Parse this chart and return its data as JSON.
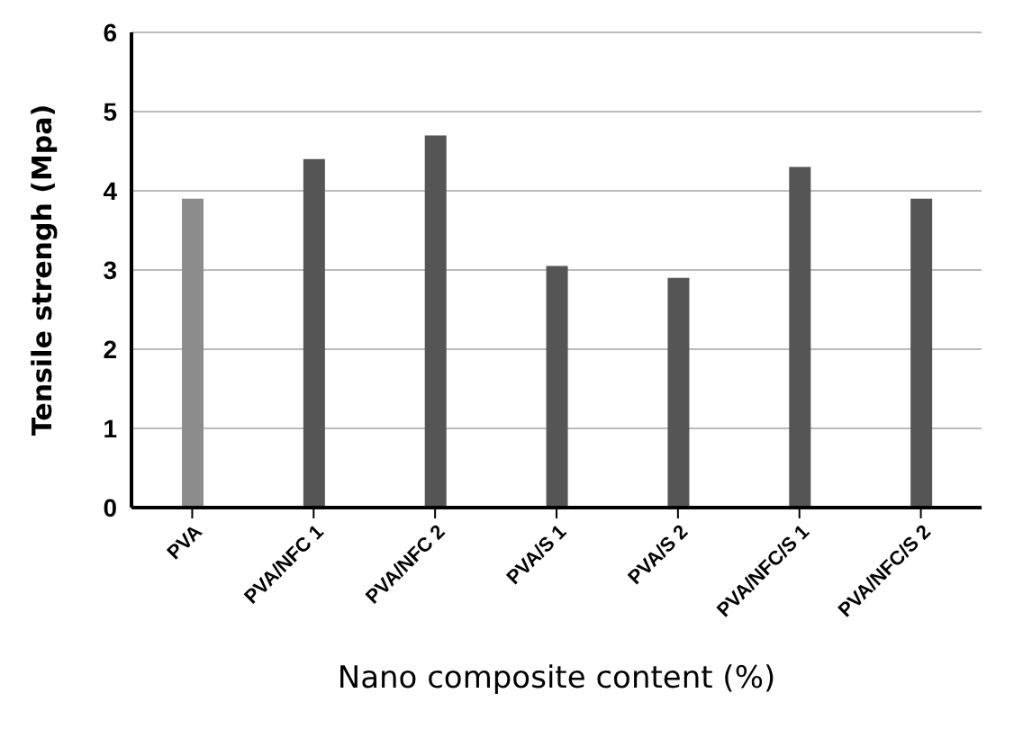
{
  "chart_data": {
    "type": "bar",
    "xlabel": "Nano composite content (%)",
    "ylabel": "Tensile strengh (Mpa)",
    "categories": [
      "PVA",
      "PVA/NFC 1",
      "PVA/NFC 2",
      "PVA/S 1",
      "PVA/S 2",
      "PVA/NFC/S 1",
      "PVA/NFC/S 2"
    ],
    "values": [
      3.9,
      4.4,
      4.7,
      3.05,
      2.9,
      4.3,
      3.9
    ],
    "colors": [
      "#8c8c8c",
      "#555555",
      "#555555",
      "#555555",
      "#555555",
      "#555555",
      "#555555"
    ],
    "ylim": [
      0,
      6
    ],
    "yticks": [
      0,
      1,
      2,
      3,
      4,
      5,
      6
    ],
    "grid": "y"
  }
}
